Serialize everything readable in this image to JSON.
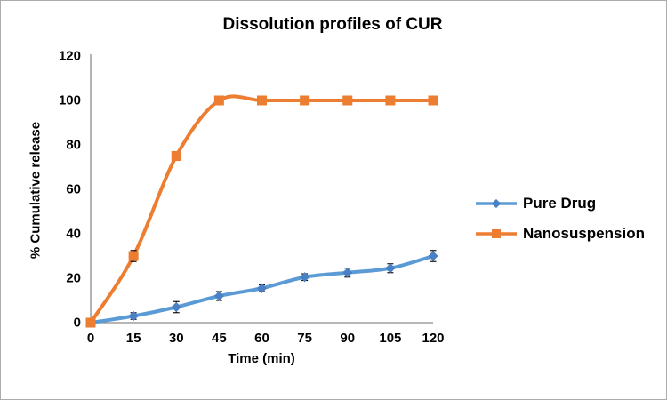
{
  "window": {
    "background": "#FFFFFF",
    "border_color": "#ABABAB"
  },
  "chart_data": {
    "type": "line",
    "title": "Dissolution profiles of CUR",
    "xlabel": "Time (min)",
    "ylabel": "% Cumulative release",
    "x": [
      0,
      15,
      30,
      45,
      60,
      75,
      90,
      105,
      120
    ],
    "x_tick_labels": [
      "0",
      "15",
      "30",
      "45",
      "60",
      "75",
      "90",
      "105",
      "120"
    ],
    "y_tick_labels": [
      "0",
      "20",
      "40",
      "60",
      "80",
      "100",
      "120"
    ],
    "y_tick_values": [
      0,
      20,
      40,
      60,
      80,
      100,
      120
    ],
    "xlim": [
      0,
      120
    ],
    "ylim": [
      0,
      120
    ],
    "grid": false,
    "legend_position": "right",
    "axis_color": "#8C8C8C",
    "error_bar_color": "#000000",
    "text_color": "#000000",
    "series": [
      {
        "name": "Pure Drug",
        "marker": "diamond",
        "line_color": "#5B9BD5",
        "marker_color": "#4A80C4",
        "smooth": true,
        "values": [
          0,
          3,
          7,
          12,
          15.5,
          20.5,
          22.5,
          24.5,
          30
        ],
        "errors": [
          0,
          1.5,
          2.5,
          2,
          1.5,
          1.5,
          2,
          2,
          2.5
        ]
      },
      {
        "name": "Nanosuspension",
        "marker": "square",
        "line_color": "#ED7D31",
        "marker_color": "#ED7D31",
        "smooth": true,
        "values": [
          0,
          30,
          75,
          100,
          100,
          100,
          100,
          100,
          100
        ],
        "errors": [
          0,
          2.5,
          2,
          1,
          1.5,
          1,
          1,
          1,
          1
        ]
      }
    ]
  }
}
